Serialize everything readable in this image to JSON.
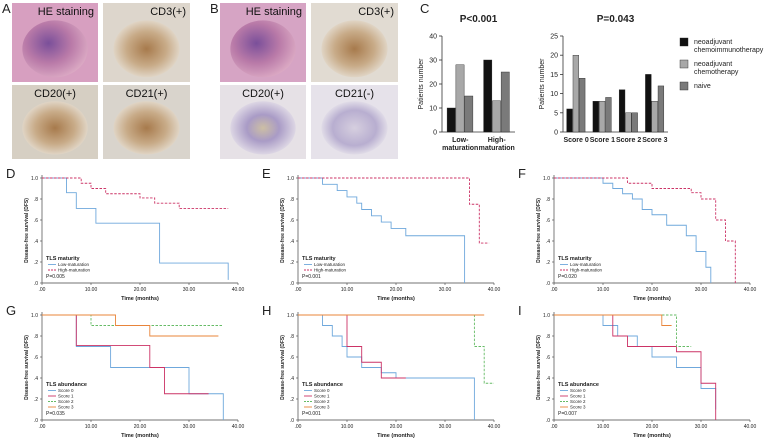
{
  "image_panels": [
    {
      "label": "A",
      "images": [
        "HE staining",
        "CD3(+)",
        "CD20(+)",
        "CD21(+)"
      ]
    },
    {
      "label": "B",
      "images": [
        "HE staining",
        "CD3(+)",
        "CD20(+)",
        "CD21(-)"
      ]
    }
  ],
  "chart_data": [
    {
      "type": "bar",
      "label": "C",
      "title": "P<0.001",
      "y_label": "Patients number",
      "categories": [
        "Low-maturation",
        "High-maturation"
      ],
      "series": [
        {
          "color": "#111111",
          "values": [
            10,
            30
          ]
        },
        {
          "color": "#a8a8a8",
          "values": [
            28,
            13
          ]
        },
        {
          "color": "#7a7a7a",
          "values": [
            15,
            25
          ]
        }
      ],
      "ylim": [
        0,
        40
      ],
      "yticks": [
        0,
        10,
        20,
        30,
        40
      ]
    },
    {
      "type": "bar",
      "title": "P=0.043",
      "y_label": "Patients number",
      "categories": [
        "Score 0",
        "Score 1",
        "Score 2",
        "Score 3"
      ],
      "series": [
        {
          "name": "neoadjuvant chemoimmunotherapy",
          "color": "#111111",
          "values": [
            6,
            8,
            11,
            15
          ]
        },
        {
          "name": "neoadjuvant chemotherapy",
          "color": "#a8a8a8",
          "values": [
            20,
            8,
            5,
            8
          ]
        },
        {
          "name": "naive",
          "color": "#7a7a7a",
          "values": [
            14,
            9,
            5,
            12
          ]
        }
      ],
      "ylim": [
        0,
        25
      ],
      "yticks": [
        0,
        5,
        10,
        15,
        20,
        25
      ],
      "legend": "right"
    },
    {
      "type": "survival",
      "label": "D",
      "x_label": "Time (months)",
      "y_label": "Disease-free survival (DFS)",
      "legend_title": "TLS maturity",
      "p_value": "P=0.005",
      "series": [
        {
          "name": "Low-maturation",
          "color": "#6fa8dc",
          "dashed": false,
          "x": [
            0,
            5,
            7,
            11,
            24,
            38
          ],
          "values": [
            1,
            0.86,
            0.71,
            0.57,
            0.19,
            0.03
          ]
        },
        {
          "name": "High-maturation",
          "color": "#cc3366",
          "dashed": true,
          "x": [
            0,
            8,
            10,
            13,
            20,
            23,
            28,
            38
          ],
          "values": [
            1,
            0.95,
            0.9,
            0.85,
            0.81,
            0.76,
            0.71,
            0.71
          ]
        }
      ],
      "xlim": [
        0,
        40
      ],
      "xticks": [
        {
          "value": 0,
          "label": ".00"
        },
        {
          "value": 10,
          "label": "10.00"
        },
        {
          "value": 20,
          "label": "20.00"
        },
        {
          "value": 30,
          "label": "30.00"
        },
        {
          "value": 40,
          "label": "40.00"
        }
      ],
      "ylim": [
        0,
        1
      ],
      "yticks": [
        {
          "value": 0,
          "label": ".0"
        },
        {
          "value": 0.2,
          "label": ".2"
        },
        {
          "value": 0.4,
          "label": ".4"
        },
        {
          "value": 0.6,
          "label": ".6"
        },
        {
          "value": 0.8,
          "label": ".8"
        },
        {
          "value": 1,
          "label": "1.0"
        }
      ]
    },
    {
      "type": "survival",
      "label": "E",
      "x_label": "Time (months)",
      "y_label": "Disease-free survival (DFS)",
      "legend_title": "TLS maturity",
      "p_value": "P=0.001",
      "series": [
        {
          "name": "Low-maturation",
          "color": "#6fa8dc",
          "dashed": false,
          "x": [
            0,
            5,
            8,
            10,
            12,
            13,
            15,
            17,
            19,
            22,
            34
          ],
          "values": [
            1,
            0.94,
            0.88,
            0.82,
            0.76,
            0.7,
            0.64,
            0.58,
            0.52,
            0.45,
            0
          ]
        },
        {
          "name": "High-maturation",
          "color": "#cc3366",
          "dashed": true,
          "x": [
            0,
            35,
            37,
            39
          ],
          "values": [
            1,
            0.75,
            0.38,
            0.38
          ]
        }
      ],
      "xlim": [
        0,
        40
      ],
      "xticks": [
        {
          "value": 0,
          "label": ".00"
        },
        {
          "value": 10,
          "label": "10.00"
        },
        {
          "value": 20,
          "label": "20.00"
        },
        {
          "value": 30,
          "label": "30.00"
        },
        {
          "value": 40,
          "label": "40.00"
        }
      ],
      "ylim": [
        0,
        1
      ],
      "yticks": [
        {
          "value": 0,
          "label": ".0"
        },
        {
          "value": 0.2,
          "label": ".2"
        },
        {
          "value": 0.4,
          "label": ".4"
        },
        {
          "value": 0.6,
          "label": ".6"
        },
        {
          "value": 0.8,
          "label": ".8"
        },
        {
          "value": 1,
          "label": "1.0"
        }
      ]
    },
    {
      "type": "survival",
      "label": "F",
      "x_label": "Time (months)",
      "y_label": "Disease-free survival (DFS)",
      "legend_title": "TLS maturity",
      "p_value": "P=0.020",
      "series": [
        {
          "name": "Low-maturation",
          "color": "#6fa8dc",
          "dashed": false,
          "x": [
            0,
            10,
            12,
            14,
            16,
            18,
            20,
            23,
            27,
            29,
            31,
            32
          ],
          "values": [
            1,
            0.95,
            0.9,
            0.85,
            0.8,
            0.7,
            0.65,
            0.55,
            0.45,
            0.3,
            0.15,
            0
          ]
        },
        {
          "name": "High-maturation",
          "color": "#cc3366",
          "dashed": true,
          "x": [
            0,
            15,
            20,
            28,
            30,
            33,
            35,
            37
          ],
          "values": [
            1,
            0.95,
            0.9,
            0.86,
            0.8,
            0.6,
            0.4,
            0
          ]
        }
      ],
      "xlim": [
        0,
        40
      ],
      "xticks": [
        {
          "value": 0,
          "label": ".00"
        },
        {
          "value": 10,
          "label": "10.00"
        },
        {
          "value": 20,
          "label": "20.00"
        },
        {
          "value": 30,
          "label": "30.00"
        },
        {
          "value": 40,
          "label": "40.00"
        }
      ],
      "ylim": [
        0,
        1
      ],
      "yticks": [
        {
          "value": 0,
          "label": ".0"
        },
        {
          "value": 0.2,
          "label": ".2"
        },
        {
          "value": 0.4,
          "label": ".4"
        },
        {
          "value": 0.6,
          "label": ".6"
        },
        {
          "value": 0.8,
          "label": ".8"
        },
        {
          "value": 1,
          "label": "1.0"
        }
      ]
    },
    {
      "type": "survival",
      "label": "G",
      "x_label": "Time (months)",
      "y_label": "Disease-free survival (DFS)",
      "legend_title": "TLS abundance",
      "p_value": "P=0.035",
      "series": [
        {
          "name": "Score 0",
          "color": "#6fa8dc",
          "dashed": false,
          "x": [
            0,
            7,
            14,
            22,
            30,
            37
          ],
          "values": [
            1,
            0.7,
            0.5,
            0.5,
            0.25,
            0
          ]
        },
        {
          "name": "Score 1",
          "color": "#cc3366",
          "dashed": false,
          "x": [
            0,
            7,
            13,
            22,
            25,
            34
          ],
          "values": [
            1,
            0.71,
            0.71,
            0.5,
            0.25,
            0.25
          ]
        },
        {
          "name": "Score 2",
          "color": "#66bb66",
          "dashed": true,
          "x": [
            0,
            10,
            14,
            37
          ],
          "values": [
            1,
            0.9,
            0.9,
            0.9
          ]
        },
        {
          "name": "Score 3",
          "color": "#e8843a",
          "dashed": false,
          "x": [
            0,
            15,
            22,
            36
          ],
          "values": [
            1,
            0.9,
            0.8,
            0.8
          ]
        }
      ],
      "xlim": [
        0,
        40
      ],
      "xticks": [
        {
          "value": 0,
          "label": ".00"
        },
        {
          "value": 10,
          "label": "10.00"
        },
        {
          "value": 20,
          "label": "20.00"
        },
        {
          "value": 30,
          "label": "30.00"
        },
        {
          "value": 40,
          "label": "40.00"
        }
      ],
      "ylim": [
        0,
        1
      ],
      "yticks": [
        {
          "value": 0,
          "label": ".0"
        },
        {
          "value": 0.2,
          "label": ".2"
        },
        {
          "value": 0.4,
          "label": ".4"
        },
        {
          "value": 0.6,
          "label": ".6"
        },
        {
          "value": 0.8,
          "label": ".8"
        },
        {
          "value": 1,
          "label": "1.0"
        }
      ]
    },
    {
      "type": "survival",
      "label": "H",
      "x_label": "Time (months)",
      "y_label": "Disease-free survival (DFS)",
      "legend_title": "TLS abundance",
      "p_value": "P=0.001",
      "series": [
        {
          "name": "Score 0",
          "color": "#6fa8dc",
          "dashed": false,
          "x": [
            0,
            5,
            7,
            9,
            10,
            13,
            17,
            20,
            35,
            36
          ],
          "values": [
            1,
            0.9,
            0.8,
            0.7,
            0.6,
            0.5,
            0.45,
            0.4,
            0.4,
            0
          ]
        },
        {
          "name": "Score 1",
          "color": "#cc3366",
          "dashed": false,
          "x": [
            0,
            10,
            13,
            17,
            22
          ],
          "values": [
            1,
            0.7,
            0.55,
            0.4,
            0.4
          ]
        },
        {
          "name": "Score 2",
          "color": "#66bb66",
          "dashed": true,
          "x": [
            0,
            36,
            38,
            40
          ],
          "values": [
            1,
            0.7,
            0.35,
            0.35
          ]
        },
        {
          "name": "Score 3",
          "color": "#e8843a",
          "dashed": false,
          "x": [
            0,
            38
          ],
          "values": [
            1,
            1
          ]
        }
      ],
      "xlim": [
        0,
        40
      ],
      "xticks": [
        {
          "value": 0,
          "label": ".00"
        },
        {
          "value": 10,
          "label": "10.00"
        },
        {
          "value": 20,
          "label": "20.00"
        },
        {
          "value": 30,
          "label": "30.00"
        },
        {
          "value": 40,
          "label": "40.00"
        }
      ],
      "ylim": [
        0,
        1
      ],
      "yticks": [
        {
          "value": 0,
          "label": ".0"
        },
        {
          "value": 0.2,
          "label": ".2"
        },
        {
          "value": 0.4,
          "label": ".4"
        },
        {
          "value": 0.6,
          "label": ".6"
        },
        {
          "value": 0.8,
          "label": ".8"
        },
        {
          "value": 1,
          "label": "1.0"
        }
      ]
    },
    {
      "type": "survival",
      "label": "I",
      "x_label": "Time (months)",
      "y_label": "Disease-free survival (DFS)",
      "legend_title": "TLS abundance",
      "p_value": "P=0.007",
      "series": [
        {
          "name": "Score 0",
          "color": "#6fa8dc",
          "dashed": false,
          "x": [
            0,
            10,
            13,
            17,
            20,
            25,
            30,
            33
          ],
          "values": [
            1,
            0.9,
            0.8,
            0.7,
            0.6,
            0.5,
            0.3,
            0.1
          ]
        },
        {
          "name": "Score 1",
          "color": "#cc3366",
          "dashed": false,
          "x": [
            0,
            12,
            15,
            25,
            30,
            33
          ],
          "values": [
            1,
            0.8,
            0.7,
            0.65,
            0.35,
            0
          ]
        },
        {
          "name": "Score 2",
          "color": "#66bb66",
          "dashed": true,
          "x": [
            0,
            25,
            28
          ],
          "values": [
            1,
            0.7,
            0.7
          ]
        },
        {
          "name": "Score 3",
          "color": "#e8843a",
          "dashed": false,
          "x": [
            0,
            22,
            24
          ],
          "values": [
            1,
            0.9,
            0.9
          ]
        }
      ],
      "xlim": [
        0,
        40
      ],
      "xticks": [
        {
          "value": 0,
          "label": ".00"
        },
        {
          "value": 10,
          "label": "10.00"
        },
        {
          "value": 20,
          "label": "20.00"
        },
        {
          "value": 30,
          "label": "30.00"
        },
        {
          "value": 40,
          "label": "40.00"
        }
      ],
      "ylim": [
        0,
        1
      ],
      "yticks": [
        {
          "value": 0,
          "label": ".0"
        },
        {
          "value": 0.2,
          "label": ".2"
        },
        {
          "value": 0.4,
          "label": ".4"
        },
        {
          "value": 0.6,
          "label": ".6"
        },
        {
          "value": 0.8,
          "label": ".8"
        },
        {
          "value": 1,
          "label": "1.0"
        }
      ]
    }
  ]
}
